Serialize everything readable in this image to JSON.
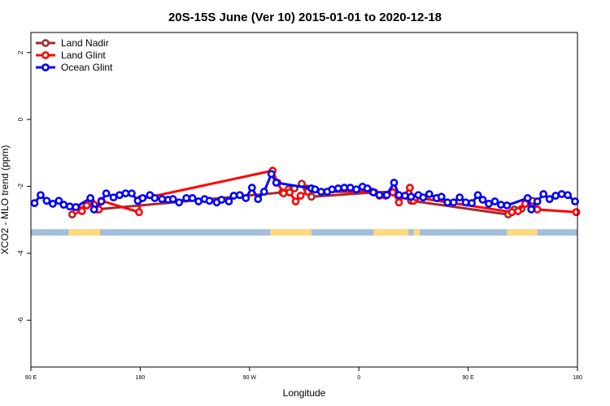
{
  "chart_data": {
    "type": "line",
    "title": "20S-15S June (Ver 10)   2015-01-01 to 2020-12-18",
    "x_label": "Longitude",
    "y_label": "XCO2 - MLO trend (ppm)",
    "xlim": [
      90,
      540
    ],
    "ylim": [
      -7.4,
      2.6
    ],
    "xticks": [
      {
        "value": 90,
        "label": "90 E"
      },
      180,
      {
        "value": 270,
        "label": "90 W"
      },
      {
        "value": 360,
        "label": "0"
      },
      {
        "value": 450,
        "label": "90 E"
      },
      {
        "value": 540,
        "label": "180"
      }
    ],
    "yticks": [
      2,
      0,
      -2,
      -4,
      -6
    ],
    "legend": "top-left",
    "surface": {
      "ylim": [
        -3.47,
        -3.28
      ],
      "ocean_color": "#a3bddf",
      "land_color": "#ffd97a",
      "land": [
        [
          121,
          147
        ],
        [
          287,
          321
        ],
        [
          372,
          401
        ],
        [
          405,
          410
        ],
        [
          482,
          507
        ]
      ]
    },
    "series": [
      {
        "name": "Land Nadir",
        "color": "#a52a2a",
        "x": [
          124,
          129,
          140,
          144,
          297,
          302,
          307,
          313,
          317,
          321,
          373,
          387,
          403,
          483,
          488,
          494,
          503
        ],
        "values": [
          -2.84,
          -2.69,
          -2.48,
          -2.69,
          -2.18,
          -2.09,
          -2.06,
          -1.92,
          -2.06,
          -2.31,
          -2.18,
          -2.16,
          -2.43,
          -2.84,
          -2.69,
          -2.67,
          -2.43
        ]
      },
      {
        "name": "Land Glint",
        "color": "#ff0000",
        "x": [
          127,
          132,
          136,
          142,
          146,
          148,
          179,
          180,
          289,
          293,
          298,
          303,
          308,
          312,
          318,
          371,
          377,
          382,
          388,
          393,
          402,
          405,
          407,
          486,
          491,
          497,
          502,
          507,
          539
        ],
        "values": [
          -2.72,
          -2.74,
          -2.57,
          -2.55,
          -2.69,
          -2.43,
          -2.77,
          -2.38,
          -1.53,
          -1.89,
          -2.21,
          -2.18,
          -2.45,
          -2.28,
          -2.16,
          -2.16,
          -2.28,
          -2.28,
          -2.18,
          -2.48,
          -2.04,
          -2.43,
          -2.33,
          -2.77,
          -2.74,
          -2.52,
          -2.67,
          -2.69,
          -2.77
        ]
      },
      {
        "name": "Ocean Glint",
        "color": "#0000ff",
        "x": [
          93,
          98,
          103,
          108,
          113,
          117,
          122,
          127,
          139,
          142,
          148,
          152,
          158,
          163,
          168,
          173,
          178,
          182,
          188,
          192,
          198,
          203,
          207,
          212,
          218,
          223,
          228,
          233,
          237,
          243,
          247,
          253,
          257,
          262,
          267,
          272,
          277,
          282,
          288,
          292,
          321,
          324,
          329,
          334,
          338,
          343,
          348,
          353,
          358,
          363,
          367,
          372,
          377,
          383,
          389,
          393,
          398,
          403,
          409,
          413,
          418,
          424,
          428,
          433,
          438,
          443,
          448,
          453,
          458,
          462,
          467,
          472,
          477,
          482,
          499,
          502,
          507,
          512,
          517,
          522,
          527,
          532,
          538
        ],
        "values": [
          -2.5,
          -2.26,
          -2.43,
          -2.52,
          -2.43,
          -2.55,
          -2.6,
          -2.62,
          -2.35,
          -2.69,
          -2.45,
          -2.21,
          -2.33,
          -2.26,
          -2.21,
          -2.21,
          -2.43,
          -2.35,
          -2.26,
          -2.35,
          -2.38,
          -2.4,
          -2.38,
          -2.48,
          -2.35,
          -2.35,
          -2.45,
          -2.38,
          -2.43,
          -2.48,
          -2.4,
          -2.45,
          -2.28,
          -2.26,
          -2.35,
          -2.04,
          -2.38,
          -2.16,
          -1.63,
          -1.89,
          -2.06,
          -2.09,
          -2.16,
          -2.16,
          -2.09,
          -2.06,
          -2.04,
          -2.04,
          -2.09,
          -2.01,
          -2.06,
          -2.18,
          -2.26,
          -2.26,
          -1.89,
          -2.26,
          -2.28,
          -2.31,
          -2.26,
          -2.33,
          -2.23,
          -2.35,
          -2.31,
          -2.48,
          -2.48,
          -2.33,
          -2.48,
          -2.5,
          -2.26,
          -2.4,
          -2.52,
          -2.45,
          -2.55,
          -2.57,
          -2.35,
          -2.69,
          -2.45,
          -2.23,
          -2.38,
          -2.28,
          -2.23,
          -2.26,
          -2.45
        ]
      }
    ]
  }
}
